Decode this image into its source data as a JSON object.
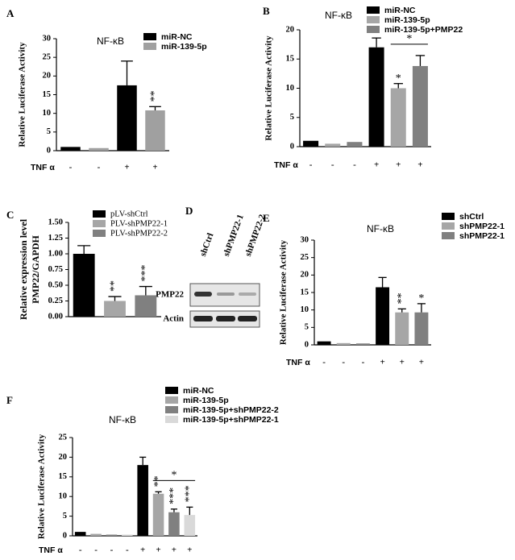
{
  "chart_data": [
    {
      "type": "bar",
      "label": "A",
      "title": "NF-κB",
      "y_label": "Relative Luciferase Activity",
      "x_label": "TNF α",
      "categories": [
        "-",
        "-",
        "+",
        "+"
      ],
      "ylim": [
        0,
        30
      ],
      "yticks": [
        0,
        5,
        10,
        15,
        20,
        25,
        30
      ],
      "series": [
        {
          "name": "miR-NC",
          "color": "#000000",
          "values": [
            1.0,
            null,
            17.5,
            null
          ],
          "errors": [
            null,
            null,
            6.5,
            null
          ],
          "significance": [
            null,
            null,
            null,
            null
          ]
        },
        {
          "name": "miR-139-5p",
          "color": "#a0a0a0",
          "values": [
            null,
            0.7,
            null,
            10.8
          ],
          "errors": [
            null,
            null,
            null,
            1.0
          ],
          "significance": [
            null,
            null,
            null,
            "**"
          ]
        }
      ]
    },
    {
      "type": "bar",
      "label": "B",
      "title": "NF-κB",
      "y_label": "Relative Luciferase Activity",
      "x_label": "TNF α",
      "categories": [
        "-",
        "-",
        "-",
        "+",
        "+",
        "+"
      ],
      "ylim": [
        0,
        20
      ],
      "yticks": [
        0,
        5,
        10,
        15,
        20
      ],
      "bracket": "*",
      "series": [
        {
          "name": "miR-NC",
          "color": "#000000",
          "values": [
            1.0,
            null,
            null,
            17.0,
            null,
            null
          ],
          "errors": [
            null,
            null,
            null,
            1.6,
            null,
            null
          ],
          "significance": [
            null,
            null,
            null,
            null,
            null,
            null
          ]
        },
        {
          "name": "miR-139-5p",
          "color": "#a6a6a6",
          "values": [
            null,
            0.5,
            null,
            null,
            10.0,
            null
          ],
          "errors": [
            null,
            null,
            null,
            null,
            0.8,
            null
          ],
          "significance": [
            null,
            null,
            null,
            null,
            "*",
            null
          ]
        },
        {
          "name": "miR-139-5p+PMP22",
          "color": "#808080",
          "values": [
            null,
            null,
            0.8,
            null,
            null,
            13.8
          ],
          "errors": [
            null,
            null,
            null,
            null,
            null,
            1.8
          ],
          "significance": [
            null,
            null,
            null,
            null,
            null,
            null
          ]
        }
      ]
    },
    {
      "type": "bar",
      "label": "C",
      "y_label": [
        "Relative expression level",
        "PMP22/GAPDH"
      ],
      "categories": [
        null,
        null,
        null
      ],
      "ylim": [
        0,
        1.5
      ],
      "yticks": [
        {
          "value": 0,
          "label": "0.00"
        },
        {
          "value": 0.25,
          "label": "0.25"
        },
        {
          "value": 0.5,
          "label": "0.50"
        },
        {
          "value": 0.75,
          "label": "0.75"
        },
        {
          "value": 1.0,
          "label": "1.00"
        },
        {
          "value": 1.25,
          "label": "1.25"
        },
        {
          "value": 1.5,
          "label": "1.50"
        }
      ],
      "series": [
        {
          "name": "pLV-shCtrl",
          "color": "#000000",
          "values": [
            1.0,
            null,
            null
          ],
          "errors": [
            0.13,
            null,
            null
          ],
          "significance": [
            null,
            null,
            null
          ]
        },
        {
          "name": "PLV-shPMP22-1",
          "color": "#a6a6a6",
          "values": [
            null,
            0.25,
            null
          ],
          "errors": [
            null,
            0.07,
            null
          ],
          "significance": [
            null,
            "**",
            null
          ]
        },
        {
          "name": "PLV-shPMP22-2",
          "color": "#808080",
          "values": [
            null,
            null,
            0.34
          ],
          "errors": [
            null,
            null,
            0.14
          ],
          "significance": [
            null,
            null,
            "***"
          ]
        }
      ]
    },
    {
      "type": "bar",
      "label": "E",
      "title": "NF-κB",
      "y_label": "Relative Luciferase Activity",
      "x_label": "TNF α",
      "categories": [
        "-",
        "-",
        "-",
        "+",
        "+",
        "+"
      ],
      "ylim": [
        0,
        30
      ],
      "yticks": [
        0,
        5,
        10,
        15,
        20,
        25,
        30
      ],
      "series": [
        {
          "name": "shCtrl",
          "color": "#000000",
          "values": [
            1.0,
            null,
            null,
            16.5,
            null,
            null
          ],
          "errors": [
            null,
            null,
            null,
            2.8,
            null,
            null
          ],
          "significance": [
            null,
            null,
            null,
            null,
            null,
            null
          ]
        },
        {
          "name": "shPMP22-1",
          "color": "#a6a6a6",
          "values": [
            null,
            0.5,
            null,
            null,
            9.3,
            null
          ],
          "errors": [
            null,
            null,
            null,
            null,
            1.0,
            null
          ],
          "significance": [
            null,
            null,
            null,
            null,
            "**",
            null
          ]
        },
        {
          "name": "shPMP22-1",
          "color": "#808080",
          "values": [
            null,
            null,
            0.4,
            null,
            null,
            9.3
          ],
          "errors": [
            null,
            null,
            null,
            null,
            null,
            2.5
          ],
          "significance": [
            null,
            null,
            null,
            null,
            null,
            "*"
          ]
        }
      ]
    },
    {
      "type": "bar",
      "label": "F",
      "title": "NF-κB",
      "y_label": "Relative Luciferase Activity",
      "x_label": "TNF α",
      "categories": [
        "-",
        "-",
        "-",
        "-",
        "+",
        "+",
        "+",
        "+"
      ],
      "ylim": [
        0,
        25
      ],
      "yticks": [
        0,
        5,
        10,
        15,
        20,
        25
      ],
      "bracket": "*",
      "series": [
        {
          "name": "miR-NC",
          "color": "#000000",
          "values": [
            1.0,
            null,
            null,
            null,
            18.0,
            null,
            null,
            null
          ],
          "errors": [
            null,
            null,
            null,
            null,
            2.0,
            null,
            null,
            null
          ],
          "significance": [
            null,
            null,
            null,
            null,
            null,
            null,
            null,
            null
          ]
        },
        {
          "name": "miR-139-5p",
          "color": "#a6a6a6",
          "values": [
            null,
            0.5,
            null,
            null,
            null,
            10.7,
            null,
            null
          ],
          "errors": [
            null,
            null,
            null,
            null,
            null,
            0.5,
            null,
            null
          ],
          "significance": [
            null,
            null,
            null,
            null,
            null,
            "**",
            null,
            null
          ]
        },
        {
          "name": "miR-139-5p+shPMP22-2",
          "color": "#808080",
          "values": [
            null,
            null,
            0.3,
            null,
            null,
            null,
            6.0,
            null
          ],
          "errors": [
            null,
            null,
            null,
            null,
            null,
            null,
            0.8,
            null
          ],
          "significance": [
            null,
            null,
            null,
            null,
            null,
            null,
            "***",
            null
          ]
        },
        {
          "name": "miR-139-5p+shPMP22-1",
          "color": "#d9d9d9",
          "values": [
            null,
            null,
            null,
            0.3,
            null,
            null,
            null,
            5.3
          ],
          "errors": [
            null,
            null,
            null,
            null,
            null,
            null,
            null,
            2.0
          ],
          "significance": [
            null,
            null,
            null,
            null,
            null,
            null,
            null,
            "***"
          ]
        }
      ]
    }
  ],
  "blot": {
    "label": "D",
    "lanes": [
      "shCtrl",
      "shPMP22-1",
      "shPMP22-2"
    ],
    "rows": [
      "PMP22",
      "Actin"
    ]
  }
}
